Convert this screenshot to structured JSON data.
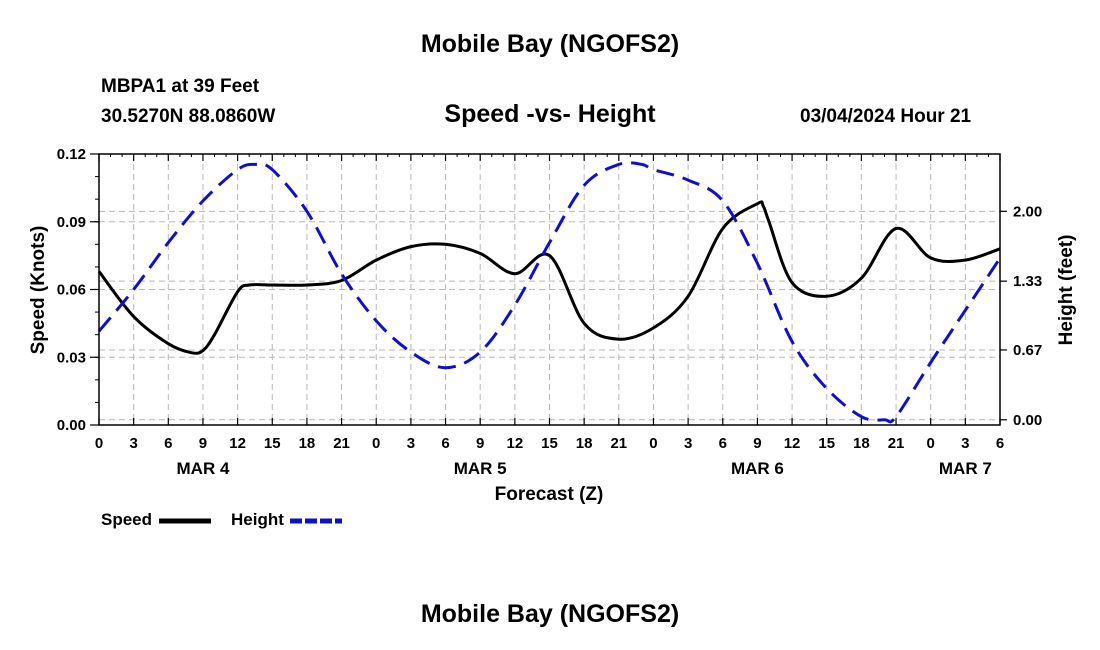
{
  "page": {
    "title_top": "Mobile Bay (NGOFS2)",
    "title_bottom": "Mobile Bay (NGOFS2)",
    "station": "MBPA1 at 39 Feet",
    "coords": "30.5270N  88.0860W",
    "plot_title": "Speed -vs- Height",
    "datetime": "03/04/2024 Hour 21"
  },
  "chart_data": {
    "type": "line",
    "title": "Speed -vs- Height",
    "xlabel": "Forecast (Z)",
    "ylabel": "Speed (Knots)",
    "y2label": "Height (feet)",
    "x_range_hours": [
      0,
      78
    ],
    "x_tick_step_hours": 3,
    "x_tick_labels": [
      "0",
      "3",
      "6",
      "9",
      "12",
      "15",
      "18",
      "21",
      "0",
      "3",
      "6",
      "9",
      "12",
      "15",
      "18",
      "21",
      "0",
      "3",
      "6",
      "9",
      "12",
      "15",
      "18",
      "21",
      "0",
      "3",
      "6"
    ],
    "date_labels": [
      {
        "label": "MAR 4",
        "hour": 9
      },
      {
        "label": "MAR 5",
        "hour": 33
      },
      {
        "label": "MAR 6",
        "hour": 57
      },
      {
        "label": "MAR 7",
        "hour": 75
      }
    ],
    "ylim_left": [
      0,
      0.12
    ],
    "y_left_ticks": [
      "0.00",
      "0.03",
      "0.06",
      "0.09",
      "0.12"
    ],
    "y_left_tick_values": [
      0,
      0.03,
      0.06,
      0.09,
      0.12
    ],
    "ylim_right": [
      -0.05,
      2.55
    ],
    "y_right_ticks": [
      "0.00",
      "0.67",
      "1.33",
      "2.00"
    ],
    "y_right_tick_values": [
      0,
      0.67,
      1.33,
      2.0
    ],
    "grid": true,
    "series": [
      {
        "name": "Speed",
        "axis": "left",
        "color": "#000000",
        "style": "solid",
        "x": [
          0,
          3,
          6,
          8,
          9,
          10,
          12,
          13,
          15,
          18,
          21,
          24,
          27,
          30,
          33,
          36,
          39,
          42,
          45,
          48,
          51,
          54,
          57,
          57.5,
          58,
          60,
          63,
          66,
          69,
          72,
          75,
          78
        ],
        "values": [
          0.068,
          0.048,
          0.036,
          0.032,
          0.033,
          0.04,
          0.059,
          0.062,
          0.062,
          0.062,
          0.064,
          0.073,
          0.079,
          0.08,
          0.076,
          0.067,
          0.075,
          0.045,
          0.038,
          0.043,
          0.057,
          0.087,
          0.098,
          0.097,
          0.09,
          0.063,
          0.057,
          0.065,
          0.087,
          0.074,
          0.073,
          0.078
        ]
      },
      {
        "name": "Height",
        "axis": "right",
        "color": "#1010c8",
        "style": "dashed",
        "x": [
          0,
          3,
          6,
          9,
          12,
          13.5,
          15,
          18,
          21,
          24,
          27,
          30,
          33,
          36,
          39,
          42,
          45,
          47,
          48,
          51,
          54,
          57,
          60,
          63,
          66,
          68,
          69,
          72,
          75,
          78
        ],
        "values": [
          0.85,
          1.25,
          1.7,
          2.1,
          2.4,
          2.45,
          2.4,
          2.0,
          1.4,
          0.95,
          0.65,
          0.5,
          0.65,
          1.1,
          1.7,
          2.25,
          2.45,
          2.45,
          2.4,
          2.3,
          2.1,
          1.5,
          0.75,
          0.3,
          0.03,
          0.0,
          0.03,
          0.55,
          1.05,
          1.55
        ]
      }
    ],
    "legend": {
      "placement": "bottom-left",
      "entries": [
        "Speed",
        "Height"
      ]
    }
  }
}
